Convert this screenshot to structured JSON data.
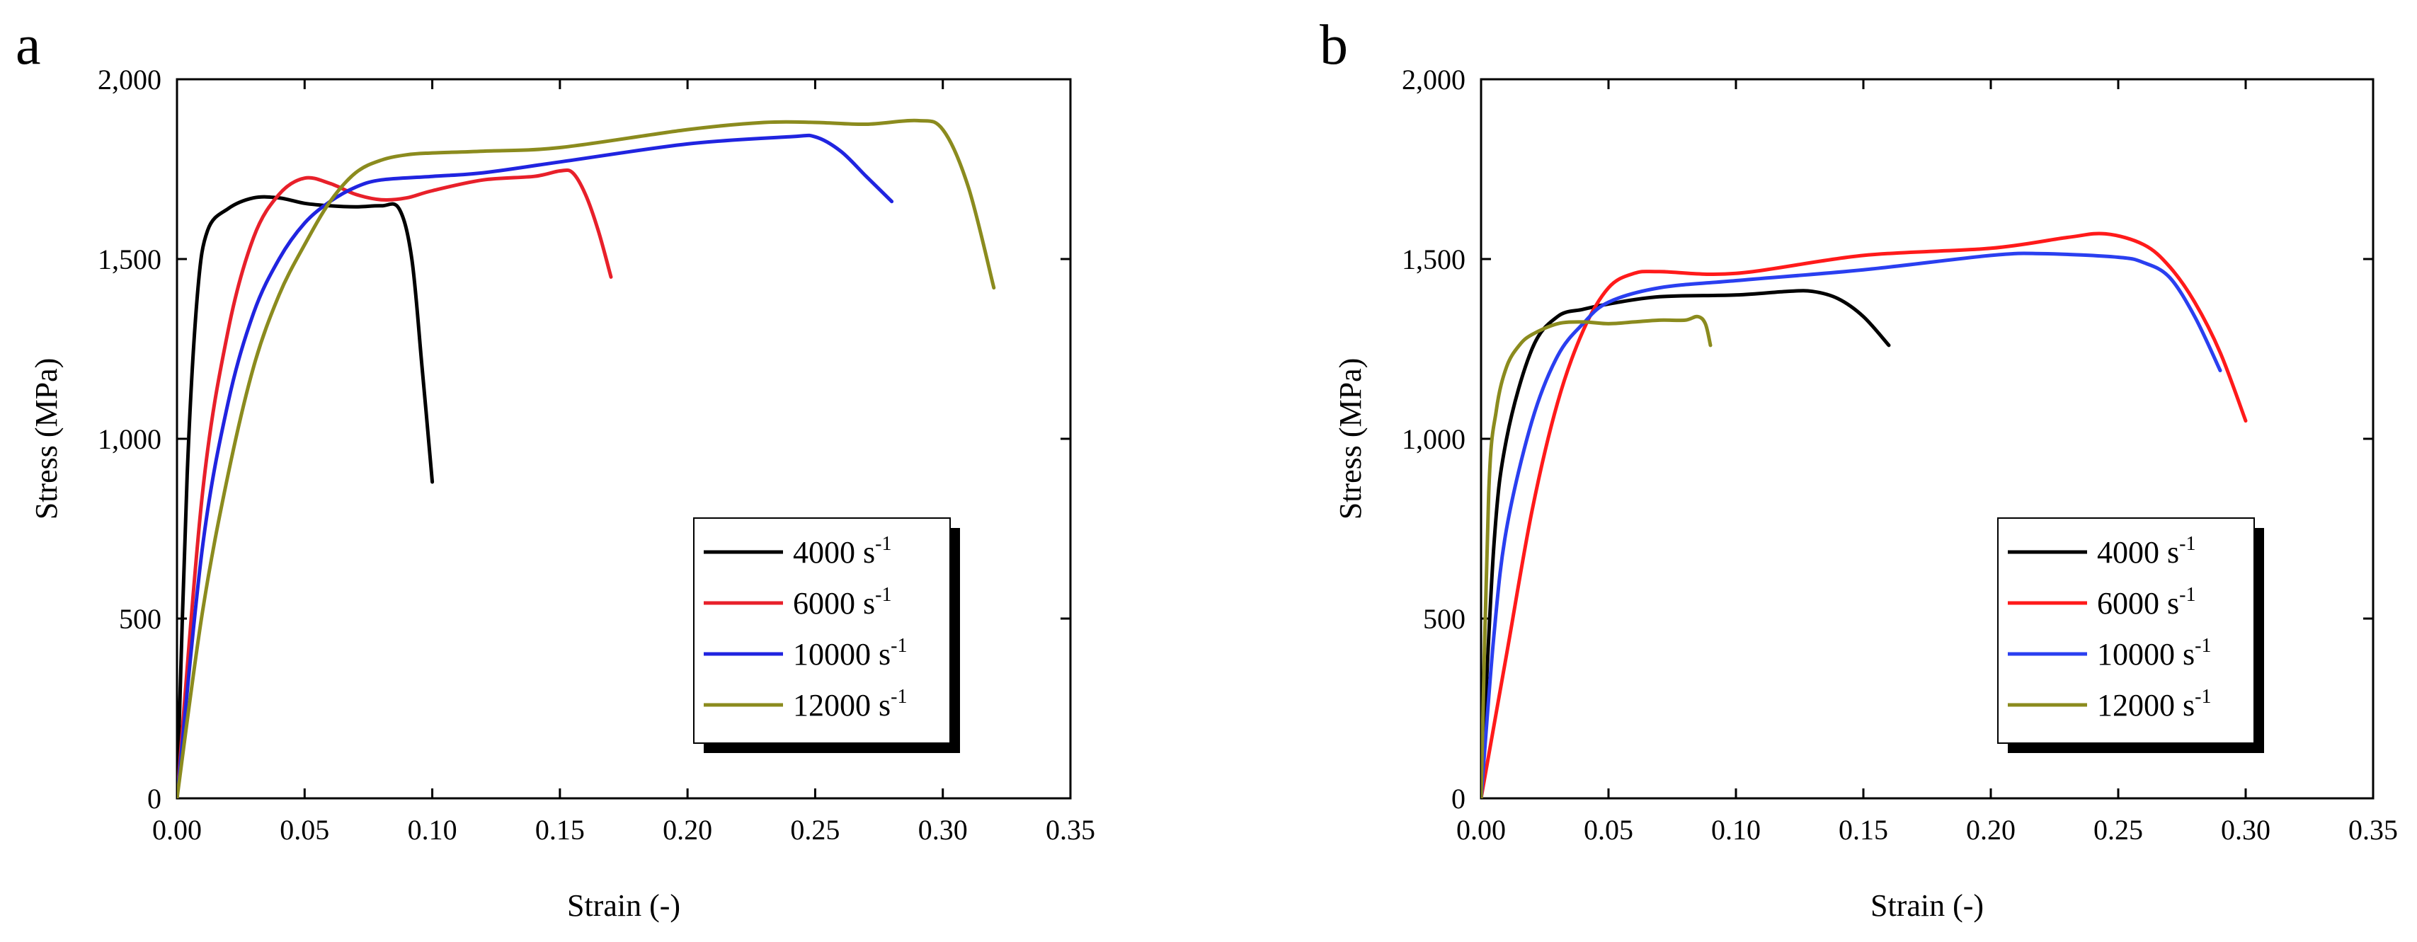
{
  "chart_data": [
    {
      "panel": "a",
      "type": "line",
      "title": "",
      "xlabel": "Strain (-)",
      "ylabel": "Stress (MPa)",
      "xlim": [
        0,
        0.35
      ],
      "ylim": [
        0,
        2000
      ],
      "xticks": [
        0.0,
        0.05,
        0.1,
        0.15,
        0.2,
        0.25,
        0.3,
        0.35
      ],
      "xtick_labels": [
        "0.00",
        "0.05",
        "0.10",
        "0.15",
        "0.20",
        "0.25",
        "0.30",
        "0.35"
      ],
      "yticks": [
        0,
        500,
        1000,
        1500,
        2000
      ],
      "ytick_labels": [
        "0",
        "500",
        "1,000",
        "1,500",
        "2,000"
      ],
      "legend_position": "lower-right",
      "series": [
        {
          "name": "4000",
          "unit": "s",
          "exp": "-1",
          "color": "#000000",
          "x": [
            0,
            0.004,
            0.008,
            0.012,
            0.02,
            0.03,
            0.04,
            0.05,
            0.06,
            0.07,
            0.08,
            0.087,
            0.092,
            0.096,
            0.1
          ],
          "y": [
            0,
            900,
            1400,
            1580,
            1640,
            1670,
            1670,
            1655,
            1648,
            1645,
            1648,
            1640,
            1500,
            1200,
            880
          ]
        },
        {
          "name": "6000",
          "unit": "s",
          "exp": "-1",
          "color": "#e8202a",
          "x": [
            0,
            0.01,
            0.02,
            0.03,
            0.04,
            0.05,
            0.06,
            0.07,
            0.08,
            0.09,
            0.1,
            0.12,
            0.14,
            0.15,
            0.155,
            0.16,
            0.165,
            0.17
          ],
          "y": [
            0,
            850,
            1300,
            1560,
            1680,
            1725,
            1710,
            1680,
            1665,
            1670,
            1690,
            1720,
            1730,
            1745,
            1740,
            1680,
            1580,
            1450
          ]
        },
        {
          "name": "10000",
          "unit": "s",
          "exp": "-1",
          "color": "#2024e0",
          "x": [
            0,
            0.01,
            0.02,
            0.03,
            0.04,
            0.05,
            0.06,
            0.07,
            0.08,
            0.1,
            0.12,
            0.15,
            0.2,
            0.24,
            0.25,
            0.26,
            0.27,
            0.28
          ],
          "y": [
            0,
            700,
            1100,
            1350,
            1500,
            1600,
            1660,
            1700,
            1720,
            1730,
            1740,
            1770,
            1820,
            1840,
            1840,
            1800,
            1730,
            1660
          ]
        },
        {
          "name": "12000",
          "unit": "s",
          "exp": "-1",
          "color": "#8b8b1e",
          "x": [
            0,
            0.01,
            0.02,
            0.03,
            0.04,
            0.05,
            0.06,
            0.07,
            0.08,
            0.09,
            0.1,
            0.12,
            0.15,
            0.2,
            0.23,
            0.25,
            0.27,
            0.29,
            0.3,
            0.31,
            0.32
          ],
          "y": [
            0,
            520,
            900,
            1200,
            1400,
            1540,
            1660,
            1740,
            1775,
            1790,
            1795,
            1800,
            1810,
            1860,
            1880,
            1880,
            1875,
            1885,
            1860,
            1700,
            1420
          ]
        }
      ]
    },
    {
      "panel": "b",
      "type": "line",
      "title": "",
      "xlabel": "Strain (-)",
      "ylabel": "Stress (MPa)",
      "xlim": [
        0,
        0.35
      ],
      "ylim": [
        0,
        2000
      ],
      "xticks": [
        0.0,
        0.05,
        0.1,
        0.15,
        0.2,
        0.25,
        0.3,
        0.35
      ],
      "xtick_labels": [
        "0.00",
        "0.05",
        "0.10",
        "0.15",
        "0.20",
        "0.25",
        "0.30",
        "0.35"
      ],
      "yticks": [
        0,
        500,
        1000,
        1500,
        2000
      ],
      "ytick_labels": [
        "0",
        "500",
        "1,000",
        "1,500",
        "2,000"
      ],
      "legend_position": "lower-right",
      "series": [
        {
          "name": "4000",
          "unit": "s",
          "exp": "-1",
          "color": "#000000",
          "x": [
            0,
            0.005,
            0.01,
            0.02,
            0.03,
            0.04,
            0.05,
            0.07,
            0.1,
            0.12,
            0.13,
            0.14,
            0.15,
            0.16
          ],
          "y": [
            0,
            700,
            1000,
            1250,
            1340,
            1360,
            1375,
            1395,
            1400,
            1410,
            1410,
            1390,
            1340,
            1260
          ]
        },
        {
          "name": "6000",
          "unit": "s",
          "exp": "-1",
          "color": "#ff1a1a",
          "x": [
            0,
            0.01,
            0.02,
            0.03,
            0.04,
            0.05,
            0.06,
            0.07,
            0.1,
            0.15,
            0.2,
            0.23,
            0.245,
            0.26,
            0.27,
            0.28,
            0.29,
            0.3
          ],
          "y": [
            0,
            400,
            800,
            1100,
            1300,
            1420,
            1460,
            1465,
            1460,
            1510,
            1530,
            1560,
            1570,
            1540,
            1480,
            1380,
            1240,
            1050
          ]
        },
        {
          "name": "10000",
          "unit": "s",
          "exp": "-1",
          "color": "#2a3ff0",
          "x": [
            0,
            0.005,
            0.01,
            0.02,
            0.03,
            0.04,
            0.05,
            0.07,
            0.1,
            0.15,
            0.2,
            0.22,
            0.25,
            0.26,
            0.27,
            0.28,
            0.29
          ],
          "y": [
            0,
            450,
            750,
            1050,
            1230,
            1320,
            1380,
            1420,
            1440,
            1470,
            1510,
            1515,
            1505,
            1490,
            1450,
            1340,
            1190
          ]
        },
        {
          "name": "12000",
          "unit": "s",
          "exp": "-1",
          "color": "#8b8b1e",
          "x": [
            0,
            0.003,
            0.006,
            0.01,
            0.015,
            0.02,
            0.03,
            0.04,
            0.05,
            0.06,
            0.07,
            0.08,
            0.085,
            0.088,
            0.09
          ],
          "y": [
            0,
            850,
            1080,
            1200,
            1260,
            1290,
            1320,
            1325,
            1320,
            1325,
            1330,
            1330,
            1340,
            1320,
            1260
          ]
        }
      ]
    }
  ]
}
